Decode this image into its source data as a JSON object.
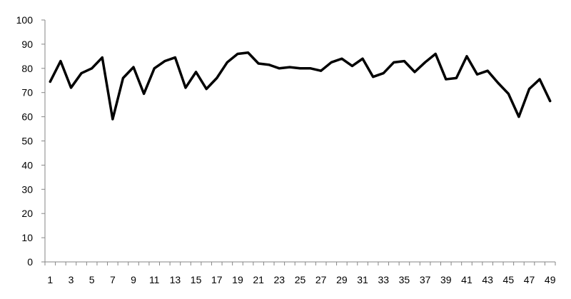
{
  "chart_data": {
    "type": "line",
    "x": [
      1,
      2,
      3,
      4,
      5,
      6,
      7,
      8,
      9,
      10,
      11,
      12,
      13,
      14,
      15,
      16,
      17,
      18,
      19,
      20,
      21,
      22,
      23,
      24,
      25,
      26,
      27,
      28,
      29,
      30,
      31,
      32,
      33,
      34,
      35,
      36,
      37,
      38,
      39,
      40,
      41,
      42,
      43,
      44,
      45,
      46,
      47,
      48,
      49
    ],
    "series": [
      {
        "values": [
          74.5,
          83,
          72,
          78,
          80,
          84.5,
          59,
          76,
          80.5,
          69.5,
          80,
          83,
          84.5,
          72,
          78.5,
          71.5,
          76,
          82.5,
          86,
          86.5,
          82,
          81.5,
          80,
          80.5,
          80,
          80,
          79,
          82.5,
          84,
          81,
          84,
          76.5,
          78,
          82.5,
          83,
          78.5,
          82.5,
          86,
          75.5,
          76,
          85,
          77.5,
          79,
          74,
          69.5,
          60,
          71.5,
          75.5,
          66.5
        ],
        "color": "#000000"
      }
    ],
    "x_tick_labels": [
      "1",
      "3",
      "5",
      "7",
      "9",
      "11",
      "13",
      "15",
      "17",
      "19",
      "21",
      "23",
      "25",
      "27",
      "29",
      "31",
      "33",
      "35",
      "37",
      "39",
      "41",
      "43",
      "45",
      "47",
      "49"
    ],
    "y_tick_labels": [
      "0",
      "10",
      "20",
      "30",
      "40",
      "50",
      "60",
      "70",
      "80",
      "90",
      "100"
    ],
    "ylim": [
      0,
      100
    ],
    "title": "",
    "xlabel": "",
    "ylabel": "",
    "grid": false,
    "legend": "none"
  }
}
